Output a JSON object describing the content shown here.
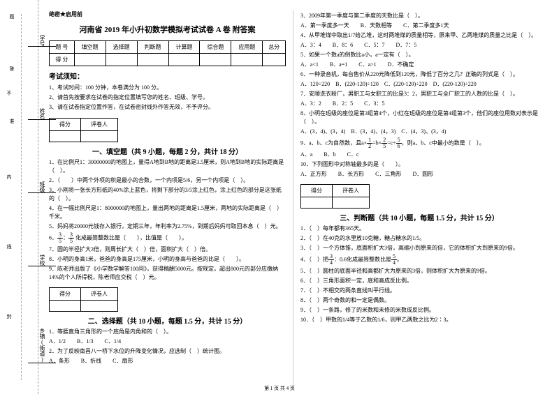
{
  "secret": "绝密★启用前",
  "title": "河南省 2019 年小升初数学模拟考试试卷 A 卷 附答案",
  "score_headers": [
    "题 号",
    "填空题",
    "选择题",
    "判断题",
    "计算题",
    "综合题",
    "应用题",
    "总分"
  ],
  "score_row": "得 分",
  "notice_title": "考试须知：",
  "notices": [
    "1、考试时间：100 分钟，本卷满分为 100 分。",
    "2、请首先按要求在试卷的指定位置填写您的姓名、班级、学号。",
    "3、请在试卷指定位置作答，在试卷密封线外作答无效，不予评分。"
  ],
  "scorebox": {
    "c1": "得分",
    "c2": "评卷人"
  },
  "sec1": "一、填空题（共 9 小题，每题 2 分，共计 18 分）",
  "q1_1": "1．在比例尺1：30000000的地图上，量得A地到B地的距离是3.5厘米，则A地到B地的实际距离是（　）。",
  "q1_2": "2．（　　）中两个外项的积是最小的合数，一个内项是5/6，另一个内项是（　）。",
  "q1_3": "3．小刚将一张长方形纸的40%涂上蓝色，将剩下部分的3/5涂上红色，涂上红色的部分是这张纸的（　）。",
  "q1_4": "4．在一幅比例尺是1：8000000的地图上，量出两地的距离是1.5厘米，两地的实际距离是（　）千米。",
  "q1_5": "5．妈妈将20000元钱存入银行，定期三年，年利率为2.75%，到期后妈妈可取回本息（　）元。",
  "q1_6a": "6．",
  "q1_6b": "化成最简整数比是（　　），比值是（　　）。",
  "q1_7": "7．圆的半径扩大3倍，则周长扩大（　）倍，面积扩大（　）倍。",
  "q1_8": "8．小明的身高1米，爸爸的身高是175厘米，小明的身高与爸爸的比是（　　）。",
  "q1_9": "9．陈老师出版了《小学数学解答100问》，获得稿酬5000元。按规定，超出800元的部分应缴纳14%的个人所得税，陈老师应交税（　）元。",
  "sec2": "二、选择题（共 10 小题，每题 1.5 分，共计 15 分）",
  "q2_1": "1．等腰直角三角形的一个底角是内角和的（　）。",
  "q2_1o": "A．1/2　　B．1/3　　C．1/4",
  "q2_2": "2．为了反映南昌八一桥下水位的升降变化情况，应选制（　）统计图。",
  "q2_2o": "A．条形　　B．折线　　C．扇形",
  "q2_3": "3．2009年第一季度与第二季度的天数比是（　）。",
  "q2_3o": "A．第一季度多一天　　B．天数相等　　C．第二季度多1天",
  "q2_4": "4．从甲堆煤中取出1/7给乙堆，这时两堆煤的质量相等，原来甲、乙两堆煤的质量之比是（　）。",
  "q2_4o": "A．3：4　　B．8：6　　C．5：7　　D．7：5",
  "q2_5": "5．如果一个数a的倒数比a小，a一定有（　）。",
  "q2_5o": "A．a<1　　B．a=1　　C．a>1　　D．不确定",
  "q2_6": "6．一种录音机，每台售价从220元降低到120元，降低了百分之几？正确的列式是（　）。",
  "q2_6o": "A．120÷220　B．(220-120)÷120　C．(220-120)÷220　D．(220-120)÷220",
  "q2_7": "7．安顺洗衣粉厂，男职工与女职工的比是3：2，男职工与全厂职工的人数的比是（　）。",
  "q2_7o": "A．3：2　　B．2：5　　C．3：5",
  "q2_8": "8．小明在班级的座位是第3组第4个，小红在班级的座位是第4组第3个，他们的座位用数对表示是（　）。",
  "q2_8o": "A．(3，4)、(3，4)　B．(3，4)、(4，3)　C．(4，3)、(3，4)",
  "q2_9a": "9．a、b、c为自然数，且a×",
  "q2_9b": "=b×",
  "q2_9c": "=c÷",
  "q2_9d": "，则a、b、c中最小的数是（　）。",
  "q2_9o": "A．a　　B．b　　C．c",
  "q2_10": "10．下列图形中对称轴最多的是（　　）。",
  "q2_10o": "A．正方形　　B．长方形　　C．三角形　　D．圆形",
  "sec3": "三、判断题（共 10 小题，每题 1.5 分，共计 15 分）",
  "q3_1": "1．（　）每年都有365天。",
  "q3_2": "2．（　）在40克的水里放10克糖，糖占糖水的1/5。",
  "q3_3": "3．（　）一个方体锥，底面积扩大3倍，高缩小到原来的倍，它的体积扩大到原来的9倍。",
  "q3_4a": "4．（　）把",
  "q3_4b": "：0.6化成最简整数比是",
  "q3_4c": "。",
  "q3_5": "5．（　）圆柱的底面半径和高都扩大为原来的3倍，则体积扩大为原来的9倍。",
  "q3_6": "6．（　）三角形面积一定，底和高成反比例。",
  "q3_7": "7．（　）不相交的两条直线叫平行线。",
  "q3_8": "8．（　）两个奇数的和一定是偶数。",
  "q3_9": "9．（　）一条路，修了的米数和未修的米数成反比例。",
  "q3_10": "10．（　）甲数的1/4等于乙数的1/6，则甲乙两数之比为2∶3。",
  "footer": "第 1 页 共 4 页",
  "binding": {
    "l1": "学号",
    "l2": "姓名",
    "l3": "班级",
    "l4": "学校",
    "l5": "乡镇(街道)",
    "m1": "不",
    "m2": "内",
    "m3": "线",
    "m4": "封",
    "vtext": "题　　　　答　　　　准"
  },
  "fracs": {
    "f35n": "3",
    "f35d": "5",
    "f12n": "1",
    "f12d": "2",
    "f25n": "2",
    "f25d": "5",
    "f56n": "5",
    "f56d": "6",
    "f34n": "3",
    "f34d": "4",
    "f54n": "5",
    "f54d": "4"
  }
}
